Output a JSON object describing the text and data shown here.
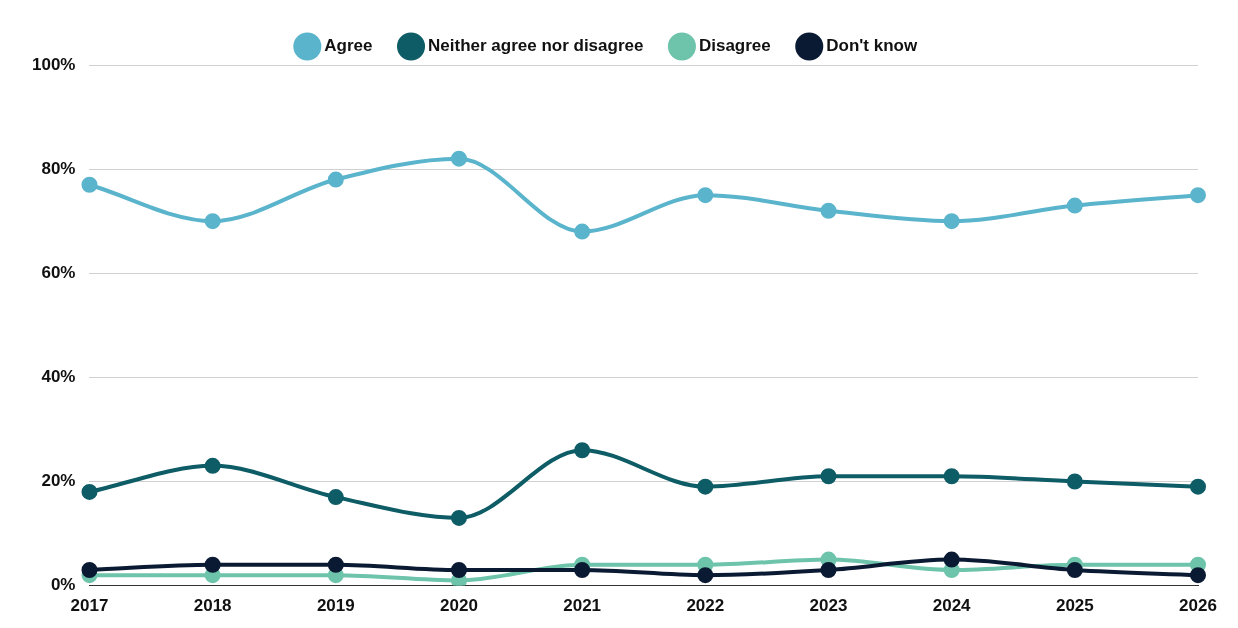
{
  "chart_data": {
    "type": "line",
    "categories": [
      "2017",
      "2018",
      "2019",
      "2020",
      "2021",
      "2022",
      "2023",
      "2024",
      "2025",
      "2026"
    ],
    "series": [
      {
        "name": "Agree",
        "color": "#5ab4cc",
        "values": [
          77,
          70,
          78,
          82,
          68,
          75,
          72,
          70,
          73,
          75
        ]
      },
      {
        "name": "Neither agree nor disagree",
        "color": "#0d5c66",
        "values": [
          18,
          23,
          17,
          13,
          26,
          19,
          21,
          21,
          20,
          19
        ]
      },
      {
        "name": "Disagree",
        "color": "#6dc4ab",
        "values": [
          2,
          2,
          2,
          1,
          4,
          4,
          5,
          3,
          4,
          4
        ]
      },
      {
        "name": "Don't know",
        "color": "#0b1a33",
        "values": [
          3,
          4,
          4,
          3,
          3,
          2,
          3,
          5,
          3,
          2
        ]
      }
    ],
    "ylim": [
      0,
      100
    ],
    "yticks": [
      {
        "value": 0,
        "label": "0%"
      },
      {
        "value": 20,
        "label": "20%"
      },
      {
        "value": 40,
        "label": "40%"
      },
      {
        "value": 60,
        "label": "60%"
      },
      {
        "value": 80,
        "label": "80%"
      },
      {
        "value": 100,
        "label": "100%"
      }
    ],
    "grid": "y",
    "legend": "top",
    "marker": "circle",
    "line_style": "solid"
  }
}
